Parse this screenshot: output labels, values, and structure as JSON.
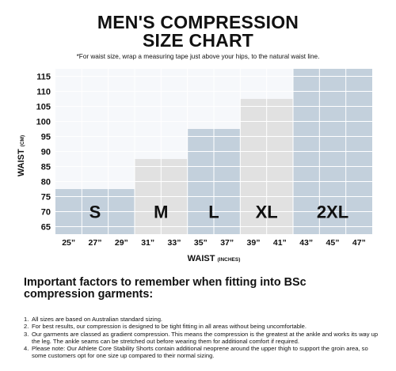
{
  "header": {
    "title_line1": "MEN'S COMPRESSION",
    "title_line2": "SIZE CHART",
    "subtitle": "*For waist size, wrap a measuring tape just above your hips, to the natural waist line."
  },
  "chart_data": {
    "type": "bar",
    "title": "MEN'S COMPRESSION SIZE CHART",
    "xlabel": "WAIST",
    "xlabel_unit": "(INCHES)",
    "ylabel": "WAIST",
    "ylabel_unit": "(CM)",
    "yticks": [
      65,
      70,
      75,
      80,
      85,
      90,
      95,
      100,
      105,
      110,
      115
    ],
    "ylim": [
      62.5,
      117.5
    ],
    "xticks": [
      "25”",
      "27”",
      "29”",
      "31”",
      "33”",
      "35”",
      "37”",
      "39”",
      "41”",
      "43”",
      "45”",
      "47”"
    ],
    "categories": [
      "S",
      "M",
      "L",
      "XL",
      "2XL"
    ],
    "series": [
      {
        "name": "S",
        "inches_range": [
          "25”",
          "29”"
        ],
        "waist_cm_max": 77.5,
        "color": "#c3d0dc"
      },
      {
        "name": "M",
        "inches_range": [
          "31”",
          "33”"
        ],
        "waist_cm_max": 87.5,
        "color": "#e1e1e1"
      },
      {
        "name": "L",
        "inches_range": [
          "35”",
          "37”"
        ],
        "waist_cm_max": 97.5,
        "color": "#c3d0dc"
      },
      {
        "name": "XL",
        "inches_range": [
          "39”",
          "41”"
        ],
        "waist_cm_max": 107.5,
        "color": "#e1e1e1"
      },
      {
        "name": "2XL",
        "inches_range": [
          "43”",
          "47”"
        ],
        "waist_cm_max": 117.5,
        "color": "#c3d0dc"
      }
    ],
    "background_color": "#f6f8fb",
    "grid": true
  },
  "notes": {
    "heading": "Important factors to remember when fitting into BSc compression garments:",
    "items": [
      {
        "num": "1.",
        "text": "All sizes are based on Australian standard sizing."
      },
      {
        "num": "2.",
        "text": "For best results, our compression is designed to be tight fitting in all areas without being uncomfortable."
      },
      {
        "num": "3.",
        "text": "Our garments are classed as gradient compression. This means the compression is the greatest at the ankle and works its way up the leg. The ankle seams can be stretched out before wearing them for additional comfort if required."
      },
      {
        "num": "4.",
        "text": "Please note: Our Athlete Core Stability Shorts contain additional neoprene around the upper thigh to support the groin area, so some customers opt for one size up compared to their normal sizing."
      }
    ]
  }
}
